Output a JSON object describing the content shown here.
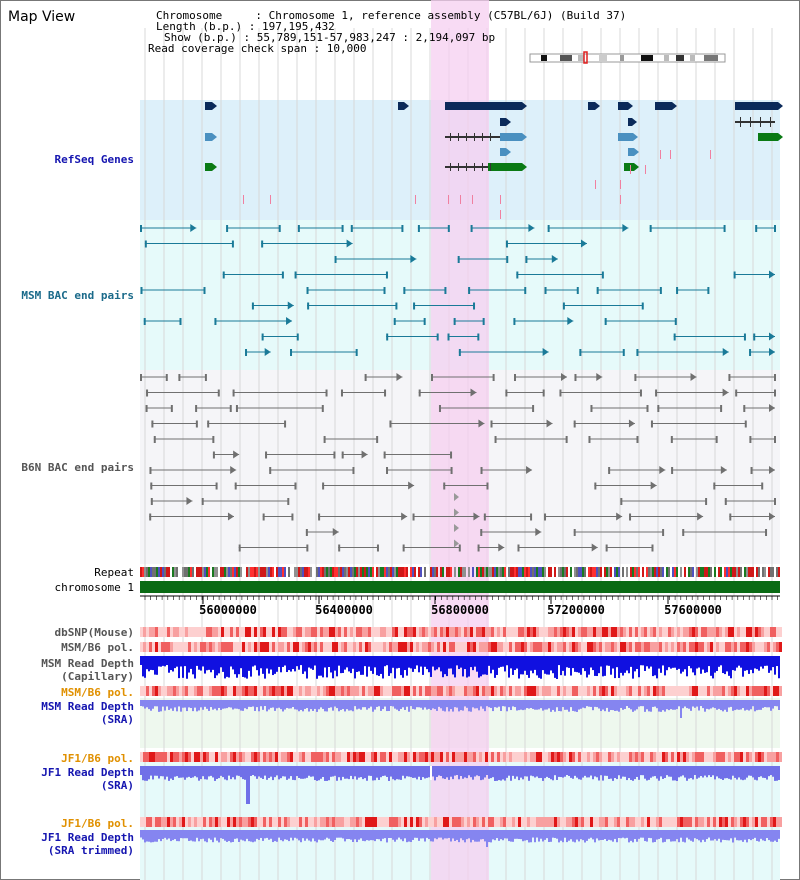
{
  "title": "Map View",
  "info": {
    "chromosome_line": "Chromosome     : Chromosome 1, reference assembly (C57BL/6J) (Build 37)",
    "length_line": "Length (b.p.) : 197,195,432",
    "show_line": "Show (b.p.) : 55,789,151-57,983,247 : 2,194,097 bp",
    "span_line": "Read coverage check span : 10,000"
  },
  "tracks": {
    "refseq": "RefSeq Genes",
    "msm_bac": "MSM BAC end pairs",
    "b6n_bac": "B6N BAC end pairs",
    "repeat": "Repeat",
    "chromosome": "chromosome 1",
    "dbsnp": "dbSNP(Mouse)",
    "msm_b6_pol_1": "MSM/B6 pol.",
    "msm_depth_cap_1": "MSM Read Depth",
    "msm_depth_cap_2": "(Capillary)",
    "msm_b6_pol_2": "MSM/B6 pol.",
    "msm_depth_sra_1": "MSM Read Depth",
    "msm_depth_sra_2": "(SRA)",
    "jf1_b6_pol_1": "JF1/B6 pol.",
    "jf1_depth_sra_1": "JF1 Read Depth",
    "jf1_depth_sra_2": "(SRA)",
    "jf1_b6_pol_2": "JF1/B6 pol.",
    "jf1_depth_trim_1": "JF1 Read Depth",
    "jf1_depth_trim_2": "(SRA trimmed)"
  },
  "axis": {
    "ticks": [
      "56000000",
      "56400000",
      "56800000",
      "57200000",
      "57600000"
    ]
  },
  "colors": {
    "refseq_bg": "#ddf0fa",
    "msm_bg": "#e6fafa",
    "b6n_bg": "#f5f5f8",
    "highlight": "#f5cff0",
    "gene_navy": "#0b2a5a",
    "gene_blue": "#4a90c0",
    "gene_green": "#0a7a14",
    "msm_pair": "#1a7a98",
    "b6n_pair": "#707070",
    "depth_blue": "#1010e0",
    "depth_light": "#8585f0",
    "label_blue": "#1515b0",
    "label_teal": "#1a6a8a",
    "label_orange": "#e09000"
  }
}
